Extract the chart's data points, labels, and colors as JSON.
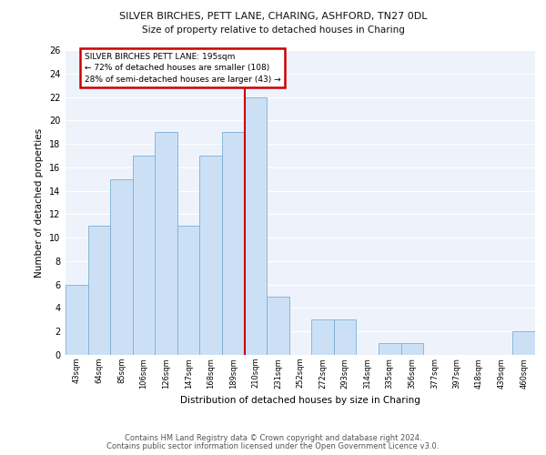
{
  "title1": "SILVER BIRCHES, PETT LANE, CHARING, ASHFORD, TN27 0DL",
  "title2": "Size of property relative to detached houses in Charing",
  "xlabel": "Distribution of detached houses by size in Charing",
  "ylabel": "Number of detached properties",
  "categories": [
    "43sqm",
    "64sqm",
    "85sqm",
    "106sqm",
    "126sqm",
    "147sqm",
    "168sqm",
    "189sqm",
    "210sqm",
    "231sqm",
    "252sqm",
    "272sqm",
    "293sqm",
    "314sqm",
    "335sqm",
    "356sqm",
    "377sqm",
    "397sqm",
    "418sqm",
    "439sqm",
    "460sqm"
  ],
  "values": [
    6,
    11,
    15,
    17,
    19,
    11,
    17,
    19,
    22,
    5,
    0,
    3,
    3,
    0,
    1,
    1,
    0,
    0,
    0,
    0,
    2
  ],
  "bar_color": "#cce0f5",
  "bar_edge_color": "#7aafd4",
  "vline_color": "#cc0000",
  "annotation_box_color": "#cc0000",
  "annotation_text": "SILVER BIRCHES PETT LANE: 195sqm\n← 72% of detached houses are smaller (108)\n28% of semi-detached houses are larger (43) →",
  "ylim": [
    0,
    26
  ],
  "yticks": [
    0,
    2,
    4,
    6,
    8,
    10,
    12,
    14,
    16,
    18,
    20,
    22,
    24,
    26
  ],
  "footer1": "Contains HM Land Registry data © Crown copyright and database right 2024.",
  "footer2": "Contains public sector information licensed under the Open Government Licence v3.0.",
  "bg_color": "#eef3fb",
  "fig_color": "#ffffff",
  "grid_color": "#ffffff"
}
